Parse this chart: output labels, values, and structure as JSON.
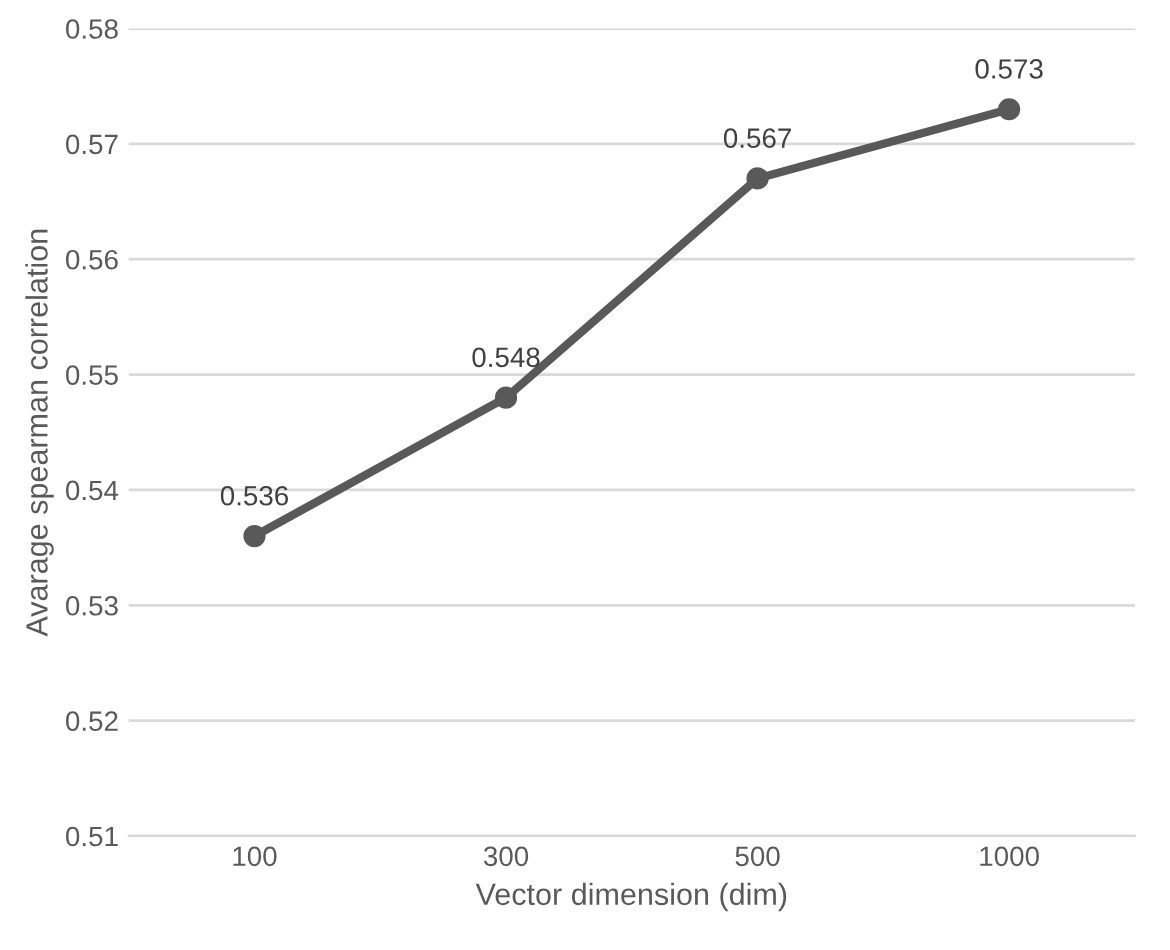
{
  "chart_data": {
    "type": "line",
    "xlabel": "Vector dimension (dim)",
    "ylabel": "Avarage spearman correlation",
    "categories": [
      "100",
      "300",
      "500",
      "1000"
    ],
    "series": [
      {
        "color": "#595959",
        "values": [
          0.536,
          0.548,
          0.567,
          0.573
        ]
      }
    ],
    "ylim": [
      0.51,
      0.58
    ],
    "yticks": [
      0.51,
      0.52,
      0.53,
      0.54,
      0.55,
      0.56,
      0.57,
      0.58
    ],
    "grid": "y",
    "marker": "circle",
    "line_style": "solid",
    "data_labels": true,
    "legend": false
  }
}
